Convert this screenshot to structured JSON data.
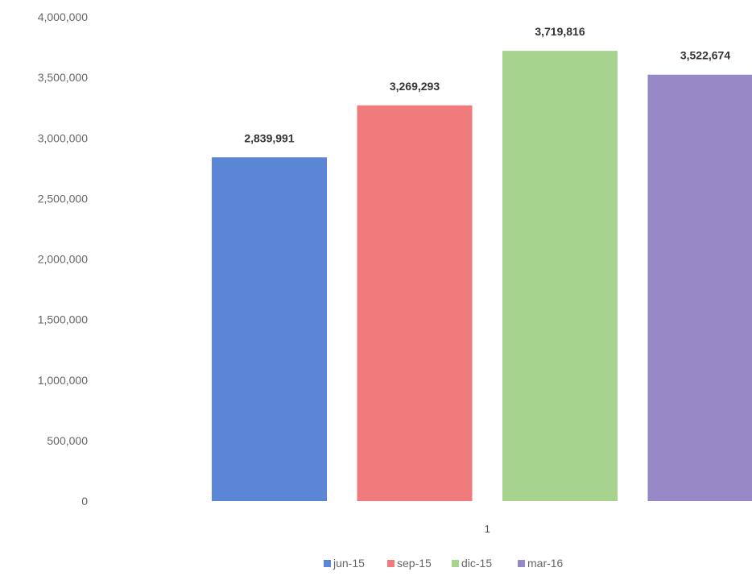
{
  "chart_data": {
    "type": "bar",
    "categories": [
      "1"
    ],
    "series": [
      {
        "name": "jun-15",
        "values": [
          2839991
        ],
        "label": "2,839,991",
        "color": "#5b86d6"
      },
      {
        "name": "sep-15",
        "values": [
          3269293
        ],
        "label": "3,269,293",
        "color": "#ef7b7c"
      },
      {
        "name": "dic-15",
        "values": [
          3719816
        ],
        "label": "3,719,816",
        "color": "#a6d48f"
      },
      {
        "name": "mar-16",
        "values": [
          3522674
        ],
        "label": "3,522,674",
        "color": "#9788c6"
      }
    ],
    "yticks": [
      0,
      500000,
      1000000,
      1500000,
      2000000,
      2500000,
      3000000,
      3500000,
      4000000
    ],
    "ytick_labels": [
      "0",
      "500,000",
      "1,000,000",
      "1,500,000",
      "2,000,000",
      "2,500,000",
      "3,000,000",
      "3,500,000",
      "4,000,000"
    ],
    "ylim": [
      0,
      4000000
    ],
    "grid": false,
    "legend": "bottom",
    "title": "",
    "xlabel": "",
    "ylabel": ""
  }
}
